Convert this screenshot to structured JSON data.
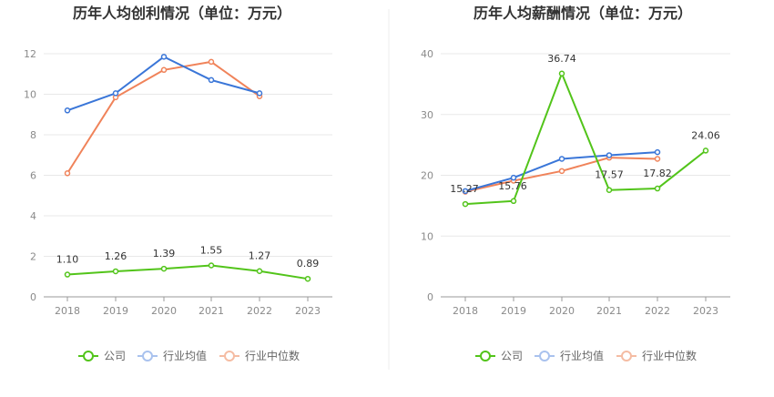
{
  "colors": {
    "company": "#52c41a",
    "industry_avg": "#3a76d8",
    "industry_median": "#f0835a",
    "grid": "#e8e8e8",
    "axis": "#999999"
  },
  "chart_data": [
    {
      "type": "line",
      "title": "历年人均创利情况（单位：万元）",
      "categories": [
        "2018",
        "2019",
        "2020",
        "2021",
        "2022",
        "2023"
      ],
      "ylim": [
        0,
        12
      ],
      "yticks": [
        0,
        2,
        4,
        6,
        8,
        10,
        12
      ],
      "series": [
        {
          "key": "company",
          "name": "公司",
          "values": [
            1.1,
            1.26,
            1.39,
            1.55,
            1.27,
            0.89
          ],
          "labels": [
            "1.10",
            "1.26",
            "1.39",
            "1.55",
            "1.27",
            "0.89"
          ]
        },
        {
          "key": "industry_avg",
          "name": "行业均值",
          "values": [
            9.2,
            10.05,
            11.85,
            10.7,
            10.05,
            null
          ]
        },
        {
          "key": "industry_median",
          "name": "行业中位数",
          "values": [
            6.1,
            9.85,
            11.2,
            11.6,
            9.9,
            null
          ]
        }
      ]
    },
    {
      "type": "line",
      "title": "历年人均薪酬情况（单位：万元）",
      "categories": [
        "2018",
        "2019",
        "2020",
        "2021",
        "2022",
        "2023"
      ],
      "ylim": [
        0,
        40
      ],
      "yticks": [
        0,
        10,
        20,
        30,
        40
      ],
      "series": [
        {
          "key": "company",
          "name": "公司",
          "values": [
            15.27,
            15.76,
            36.74,
            17.57,
            17.82,
            24.06
          ],
          "labels": [
            "15.27",
            "15.76",
            "36.74",
            "17.57",
            "17.82",
            "24.06"
          ]
        },
        {
          "key": "industry_avg",
          "name": "行业均值",
          "values": [
            17.4,
            19.6,
            22.7,
            23.3,
            23.8,
            null
          ]
        },
        {
          "key": "industry_median",
          "name": "行业中位数",
          "values": [
            17.3,
            19.1,
            20.7,
            22.9,
            22.7,
            null
          ]
        }
      ]
    }
  ],
  "legend": {
    "company": "公司",
    "industry_avg": "行业均值",
    "industry_median": "行业中位数"
  }
}
